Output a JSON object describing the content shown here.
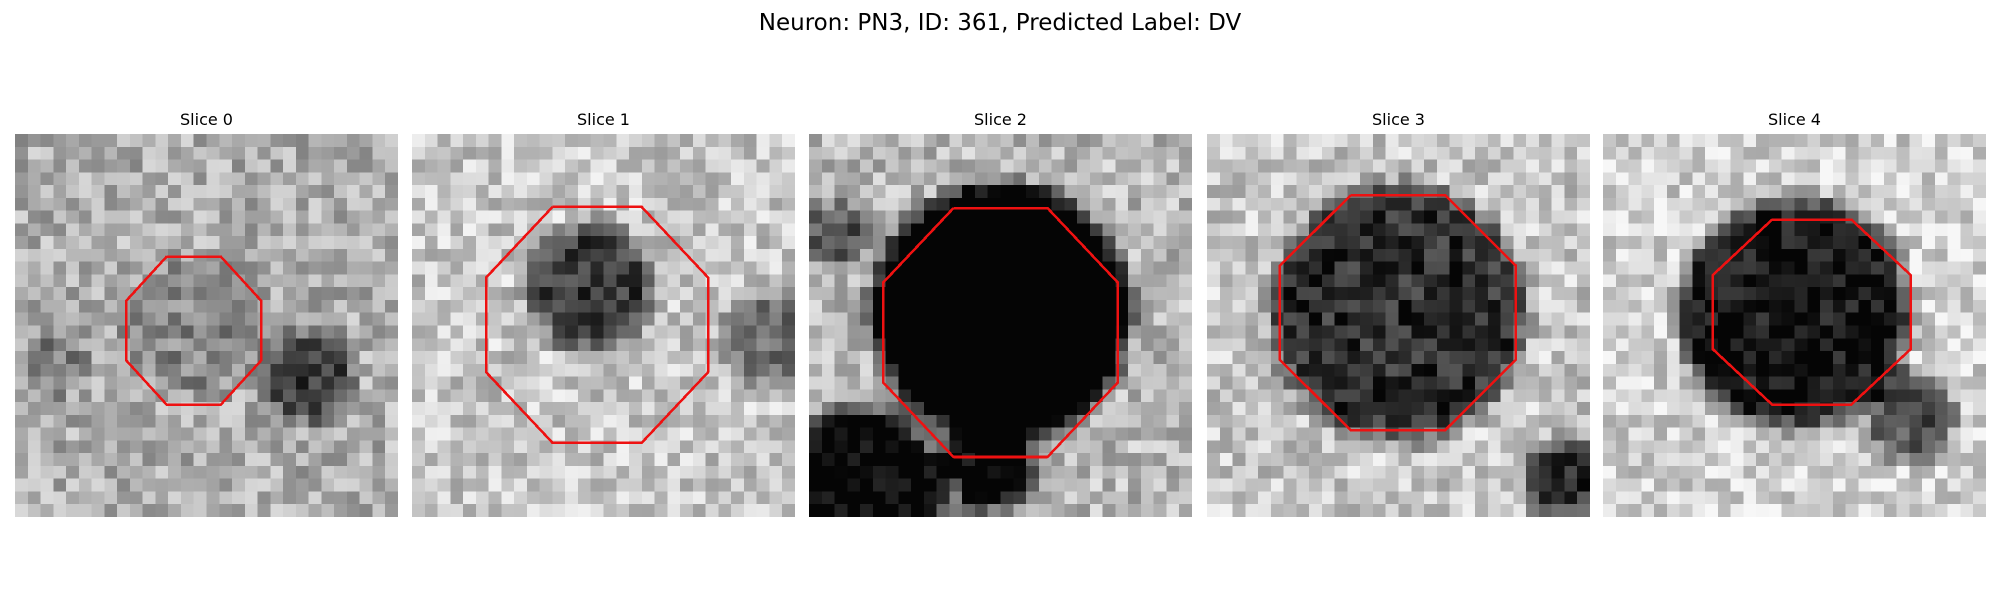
{
  "title": "Neuron: PN3, ID: 361, Predicted Label: DV",
  "panels": [
    {
      "title": "Slice 0"
    },
    {
      "title": "Slice 1"
    },
    {
      "title": "Slice 2"
    },
    {
      "title": "Slice 3"
    },
    {
      "title": "Slice 4"
    }
  ]
}
